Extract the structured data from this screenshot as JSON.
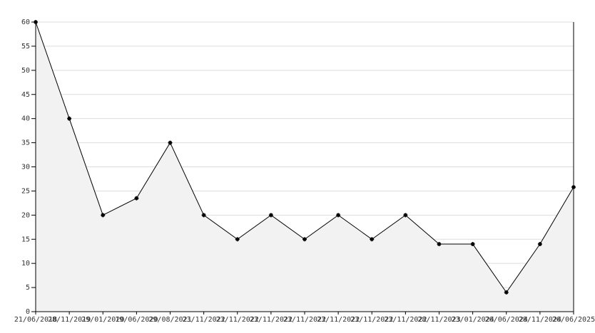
{
  "chart_data": {
    "type": "area",
    "categories": [
      "21/06/2018",
      "28/11/2019",
      "29/01/2020",
      "19/06/2020",
      "29/08/2021",
      "23/11/2022",
      "23/11/2022",
      "23/11/2022",
      "23/11/2022",
      "23/11/2022",
      "23/11/2022",
      "23/11/2022",
      "28/11/2023",
      "23/01/2024",
      "26/06/2024",
      "28/11/2024",
      "26/06/2025"
    ],
    "values": [
      60,
      40,
      20,
      23.5,
      35,
      20,
      15,
      20,
      15,
      20,
      15,
      20,
      14,
      14,
      4,
      14,
      25.8
    ],
    "color": "#000000",
    "fill": "#f2f2f2",
    "ylim": [
      0,
      60
    ],
    "yticks": [
      0,
      5,
      10,
      15,
      20,
      25,
      30,
      35,
      40,
      45,
      50,
      55,
      60
    ],
    "grid": true
  }
}
